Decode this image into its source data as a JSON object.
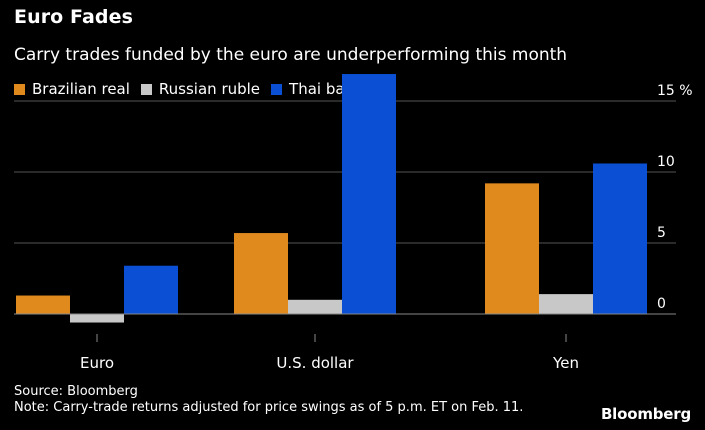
{
  "title": "Euro Fades",
  "subtitle": "Carry trades funded by the euro are underperforming this month",
  "colors": {
    "background": "#000000",
    "gridline": "#555555",
    "baseline": "#888888",
    "Brazilian real": "#e08a1e",
    "Russian ruble": "#c8c8c8",
    "Thai baht": "#0a4fd4"
  },
  "chart_data": {
    "type": "bar",
    "title": "Euro Fades",
    "subtitle": "Carry trades funded by the euro are underperforming this month",
    "categories": [
      "Euro",
      "U.S. dollar",
      "Yen"
    ],
    "series": [
      {
        "name": "Brazilian real",
        "values": [
          1.3,
          5.7,
          9.2
        ]
      },
      {
        "name": "Russian ruble",
        "values": [
          -0.6,
          1.0,
          1.4
        ]
      },
      {
        "name": "Thai baht",
        "values": [
          3.4,
          16.9,
          10.6
        ]
      }
    ],
    "y_ticks": [
      0,
      5,
      10,
      15
    ],
    "y_unit": "%",
    "ylim": [
      -1,
      17
    ],
    "y_axis_side": "right",
    "grid": true,
    "legend_position": "top-left"
  },
  "footer": {
    "source": "Source: Bloomberg",
    "note": "Note: Carry-trade returns adjusted for price swings as of 5 p.m. ET on Feb. 11."
  },
  "brand": "Bloomberg"
}
